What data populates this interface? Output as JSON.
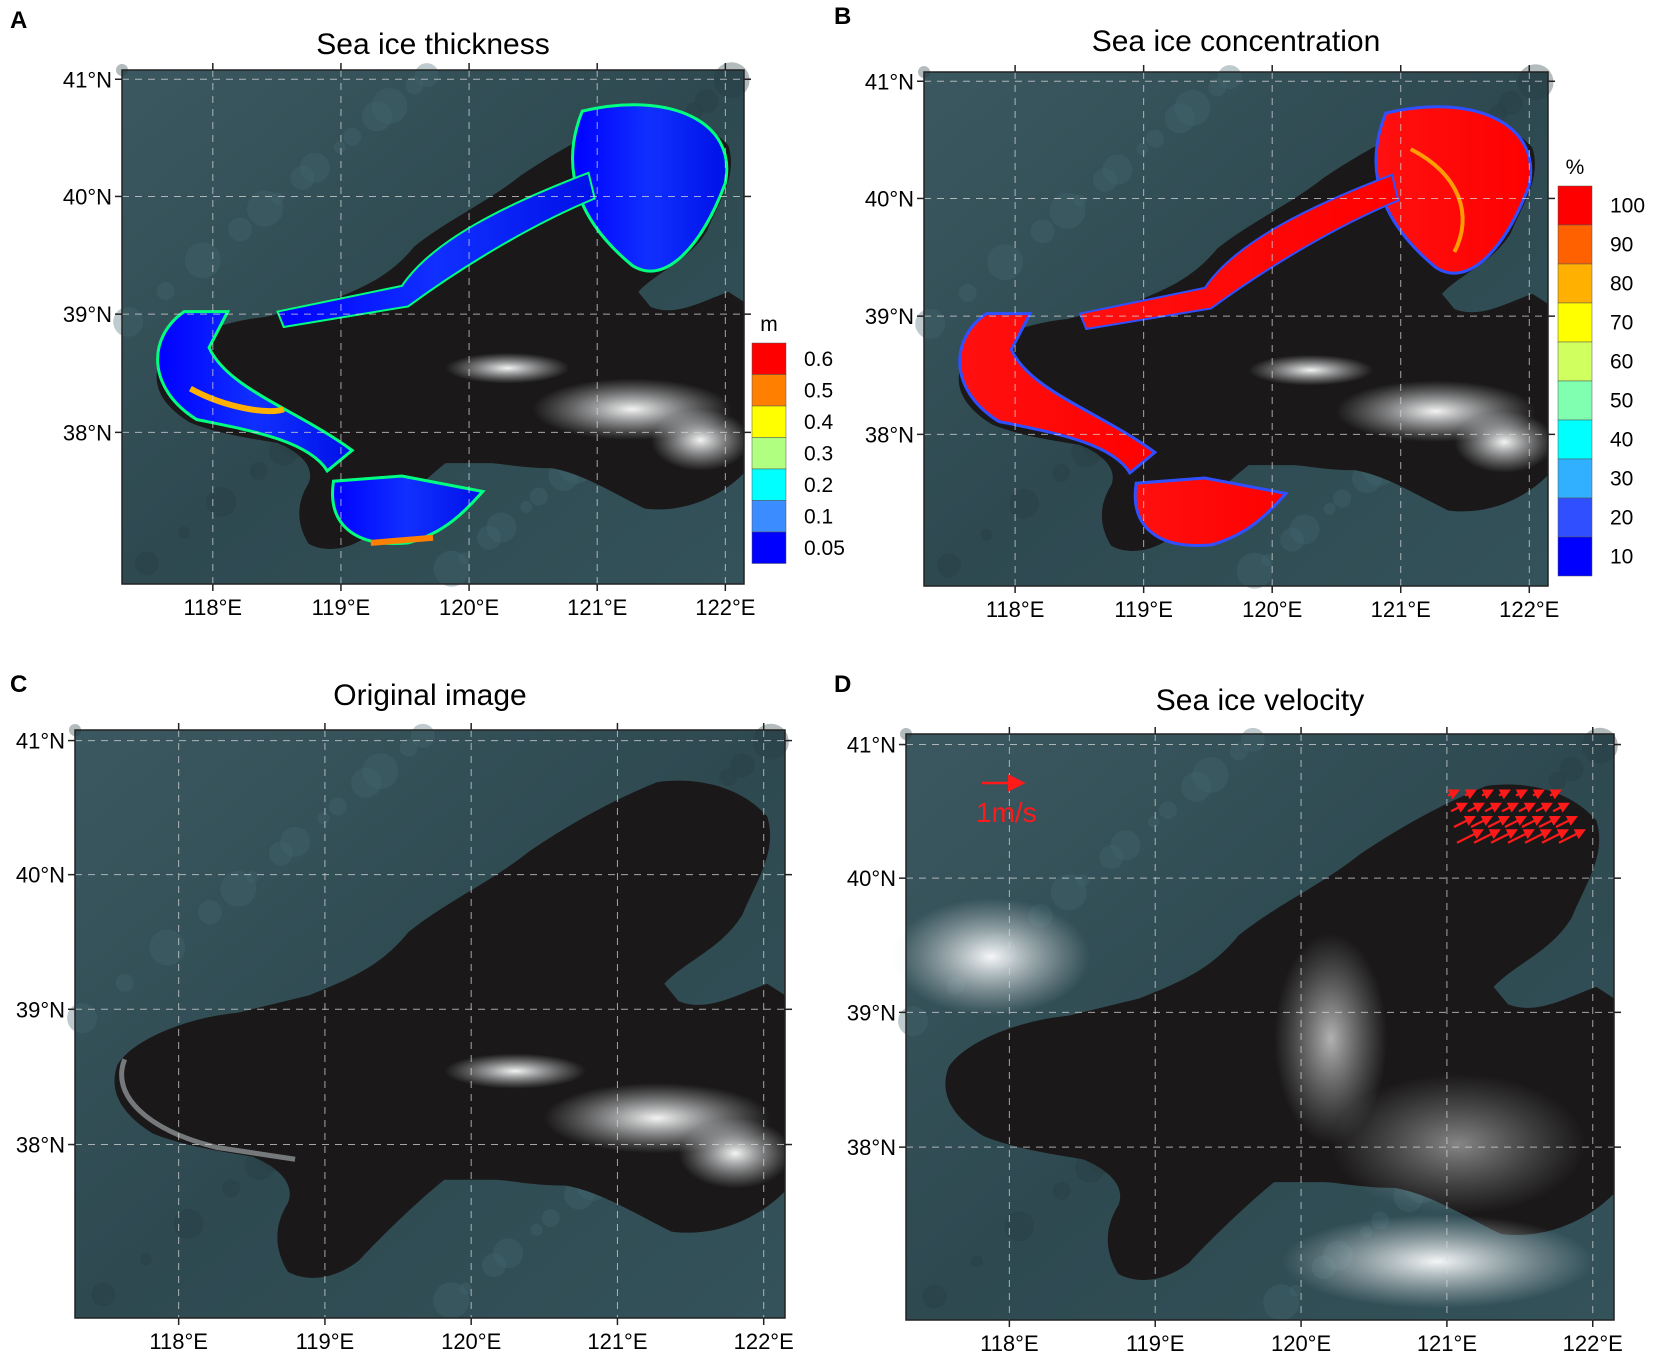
{
  "figure": {
    "panels": [
      {
        "id": "A",
        "letter": "A",
        "title": "Sea ice thickness",
        "lat_labels": [
          "41°N",
          "40°N",
          "39°N",
          "38°N"
        ],
        "lon_labels": [
          "118°E",
          "119°E",
          "120°E",
          "121°E",
          "122°E"
        ],
        "colorbar": {
          "unit": "m",
          "levels": [
            "0.6",
            "0.5",
            "0.4",
            "0.3",
            "0.2",
            "0.1",
            "0.05"
          ],
          "colors": [
            "#ff0000",
            "#ff8000",
            "#ffff00",
            "#b0ff80",
            "#00ffff",
            "#3a8cff",
            "#0000ff"
          ]
        }
      },
      {
        "id": "B",
        "letter": "B",
        "title": "Sea ice concentration",
        "lat_labels": [
          "41°N",
          "40°N",
          "39°N",
          "38°N"
        ],
        "lon_labels": [
          "118°E",
          "119°E",
          "120°E",
          "121°E",
          "122°E"
        ],
        "colorbar": {
          "unit": "%",
          "levels": [
            "100",
            "90",
            "80",
            "70",
            "60",
            "50",
            "40",
            "30",
            "20",
            "10"
          ],
          "colors": [
            "#ff0000",
            "#ff6000",
            "#ffb000",
            "#ffff00",
            "#d0ff60",
            "#80ffb0",
            "#00ffff",
            "#30b0ff",
            "#3050ff",
            "#0000ff"
          ]
        }
      },
      {
        "id": "C",
        "letter": "C",
        "title": "Original image",
        "lat_labels": [
          "41°N",
          "40°N",
          "39°N",
          "38°N"
        ],
        "lon_labels": [
          "118°E",
          "119°E",
          "120°E",
          "121°E",
          "122°E"
        ]
      },
      {
        "id": "D",
        "letter": "D",
        "title": "Sea ice velocity",
        "lat_labels": [
          "41°N",
          "40°N",
          "39°N",
          "38°N"
        ],
        "lon_labels": [
          "118°E",
          "119°E",
          "120°E",
          "121°E",
          "122°E"
        ],
        "velocity_legend": "1m/s"
      }
    ],
    "colors": {
      "land": "#2f4a52",
      "sea": "#1a1818",
      "cloud": "#e6e9ec",
      "arrow": "#ff1a1a",
      "ice_gray": "#8d9296"
    }
  }
}
